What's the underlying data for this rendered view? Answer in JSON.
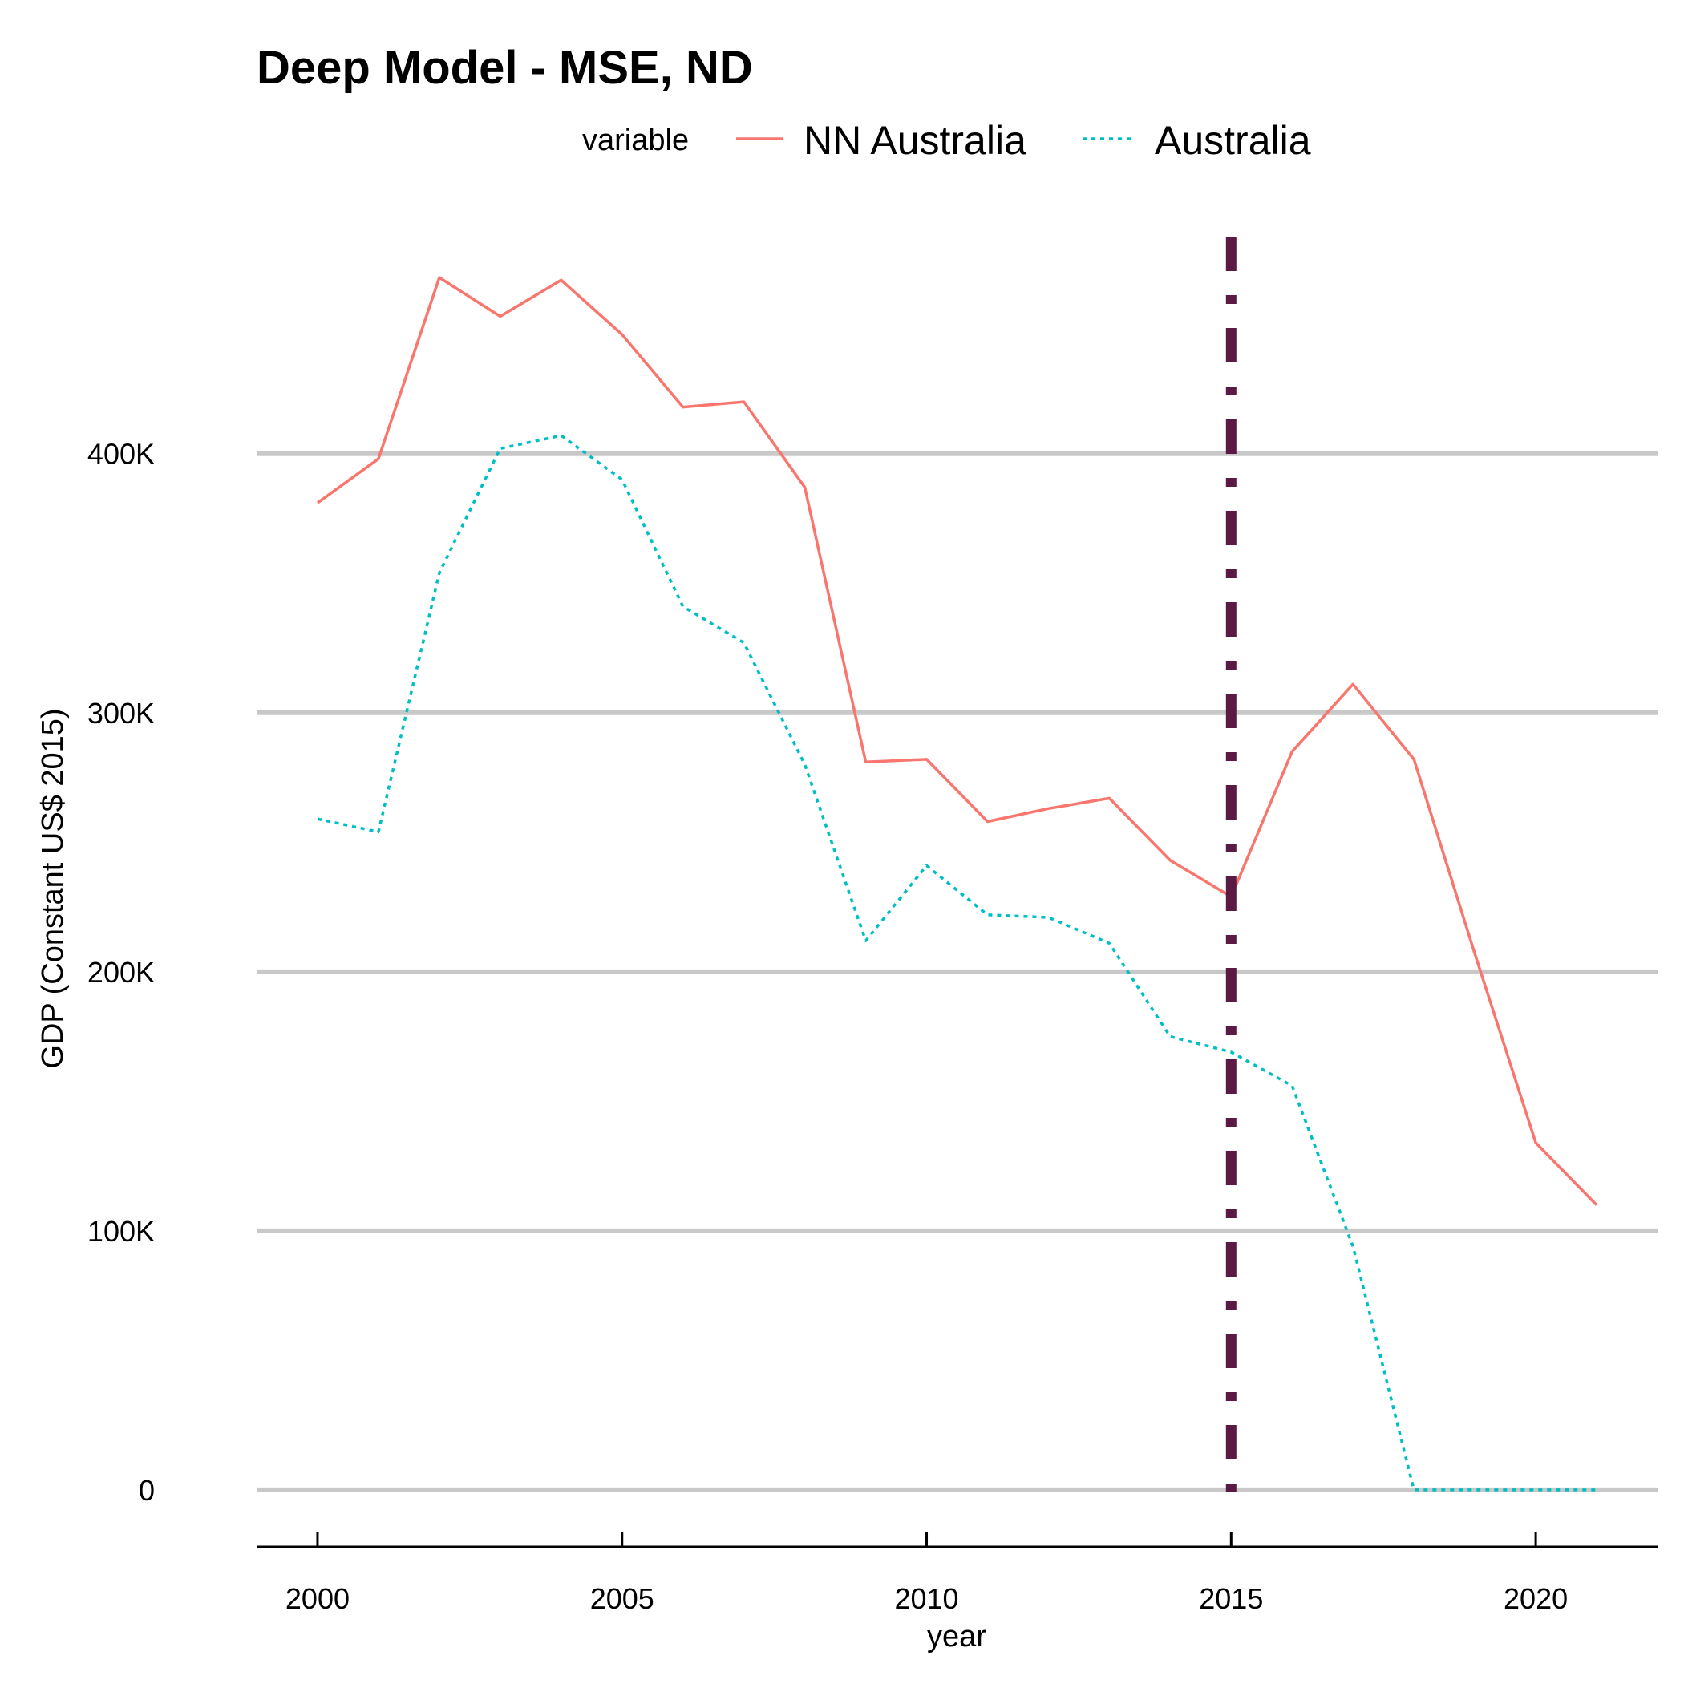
{
  "chart_data": {
    "type": "line",
    "title": "Deep Model - MSE, ND",
    "xlabel": "year",
    "ylabel": "GDP (Constant US$ 2015)",
    "legend": {
      "title": "variable",
      "placement": "top"
    },
    "xlim": [
      1999,
      2022
    ],
    "ylim": [
      -22000,
      490000
    ],
    "x_ticks": [
      2000,
      2005,
      2010,
      2015,
      2020
    ],
    "y_ticks": [
      0,
      100000,
      200000,
      300000,
      400000
    ],
    "y_tick_labels": [
      "0",
      "100K",
      "200K",
      "300K",
      "400K"
    ],
    "grid": "horizontal major",
    "x": [
      2000,
      2001,
      2002,
      2003,
      2004,
      2005,
      2006,
      2007,
      2008,
      2009,
      2010,
      2011,
      2012,
      2013,
      2014,
      2015,
      2016,
      2017,
      2018,
      2019,
      2020,
      2021
    ],
    "series": [
      {
        "name": "NN Australia",
        "color": "#F8766D",
        "linestyle": "solid",
        "values": [
          381000,
          398000,
          468000,
          453000,
          467000,
          446000,
          418000,
          420000,
          387000,
          281000,
          282000,
          258000,
          263000,
          267000,
          243000,
          229000,
          285000,
          311000,
          282000,
          207000,
          134000,
          110000
        ]
      },
      {
        "name": "Australia",
        "color": "#00BFC4",
        "linestyle": "dotted",
        "values": [
          259000,
          254000,
          354000,
          402000,
          407000,
          390000,
          341000,
          327000,
          280000,
          212000,
          241000,
          222000,
          221000,
          211000,
          175000,
          169000,
          156000,
          94000,
          0,
          0,
          0,
          0
        ]
      }
    ],
    "annotations": [
      {
        "type": "vline",
        "x": 2015,
        "color": "#5A1A44",
        "linestyle": "dashdot"
      }
    ]
  }
}
